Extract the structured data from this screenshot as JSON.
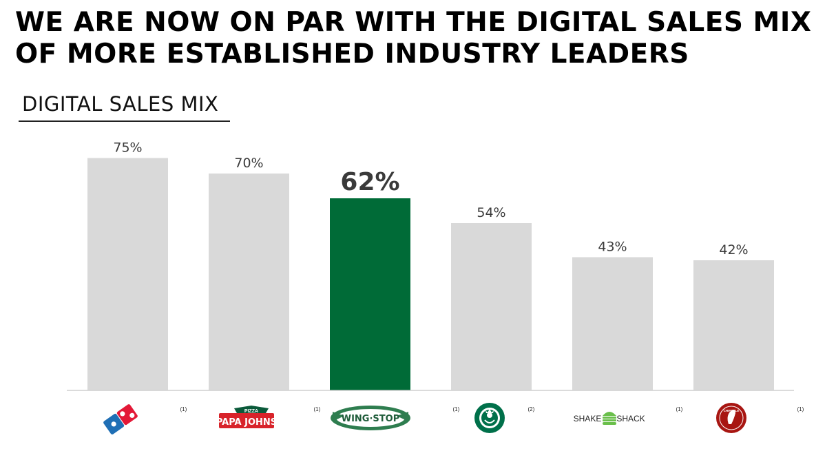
{
  "headline": "WE ARE NOW ON PAR WITH THE DIGITAL SALES MIX OF MORE ESTABLISHED INDUSTRY LEADERS",
  "chart_data": {
    "type": "bar",
    "title": "DIGITAL SALES MIX",
    "categories": [
      "Domino's",
      "Papa John's",
      "Wingstop",
      "Starbucks",
      "Shake Shack",
      "Chipotle"
    ],
    "values": [
      75,
      70,
      62,
      54,
      43,
      42
    ],
    "value_labels": [
      "75%",
      "70%",
      "62%",
      "54%",
      "43%",
      "42%"
    ],
    "footnotes": [
      "(1)",
      "(1)",
      "(1)",
      "(2)",
      "(1)",
      "(1)"
    ],
    "highlight_index": 2,
    "ylim": [
      0,
      100
    ],
    "colors": {
      "default": "#d9d9d9",
      "highlight": "#006b37"
    }
  },
  "logos": {
    "papa_johns_small": "PIZZA",
    "papa_johns_main": "PAPA JOHNS",
    "wingstop": "WING·STOP",
    "shake_left": "SHAKE",
    "shake_right": "SHACK",
    "chipotle": "CHIPOTLE"
  }
}
